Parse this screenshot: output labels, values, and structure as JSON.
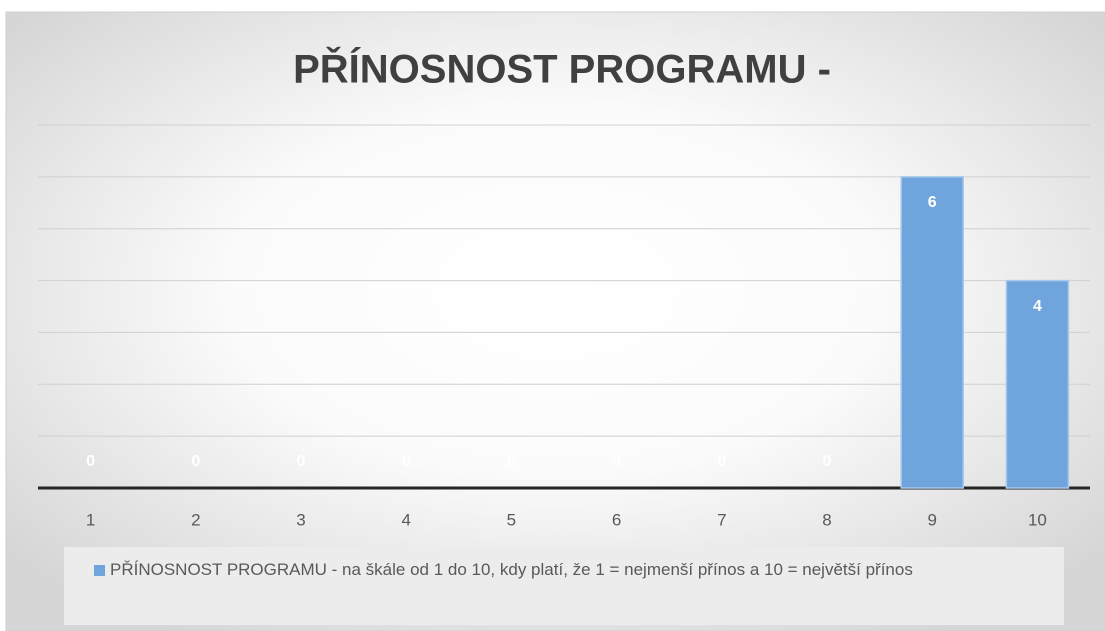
{
  "chart_data": {
    "type": "bar",
    "title": "PŘÍNOSNOST PROGRAMU -",
    "categories": [
      "1",
      "2",
      "3",
      "4",
      "5",
      "6",
      "7",
      "8",
      "9",
      "10"
    ],
    "series": [
      {
        "name": "PŘÍNOSNOST PROGRAMU - na škále od 1 do 10, kdy platí, že 1 = nejmenší přínos a 10 =  největší přínos",
        "color": "#6fa5dc",
        "values": [
          0,
          0,
          0,
          0,
          0,
          0,
          0,
          0,
          6,
          4
        ]
      }
    ],
    "ylim": [
      0,
      7
    ],
    "yticks": [
      0,
      1,
      2,
      3,
      4,
      5,
      6,
      7
    ],
    "grid": true,
    "legend": "bottom"
  }
}
